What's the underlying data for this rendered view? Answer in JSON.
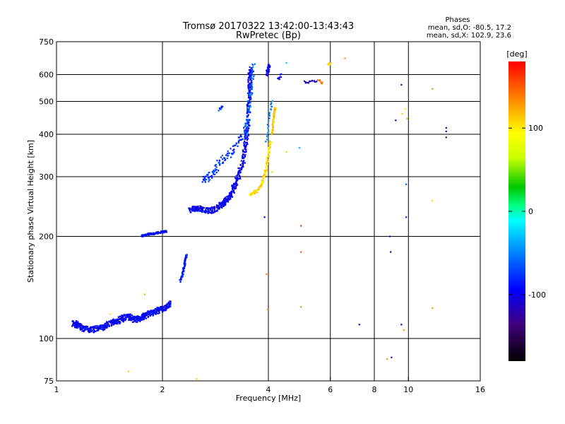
{
  "chart_data": {
    "type": "scatter",
    "title": "Tromsø 20170322 13:42:00-13:43:43",
    "subtitle": "RwPretec (Bp)",
    "xlabel": "Frequency [MHz]",
    "ylabel": "Stationary phase Virtual Height [km]",
    "x_scale": "log",
    "y_scale": "log",
    "xlim": [
      1,
      16
    ],
    "ylim": [
      75,
      750
    ],
    "x_ticks": [
      1,
      2,
      4,
      6,
      8,
      10,
      16
    ],
    "x_tick_labels": [
      "1",
      "2",
      "4",
      "6",
      "8",
      "10",
      "16"
    ],
    "y_ticks": [
      75,
      100,
      200,
      300,
      400,
      500,
      600,
      750
    ],
    "y_tick_labels": [
      "75",
      "100",
      "200",
      "300",
      "400",
      "500",
      "600",
      "750"
    ],
    "grid": true,
    "stats": {
      "heading": "Phases",
      "line_o": "mean, sd,O: -80.5, 17.2",
      "line_x": "mean, sd,X: 102.9, 23.6"
    },
    "colorbar": {
      "label": "[deg]",
      "range": [
        -180,
        180
      ],
      "ticks": [
        -100,
        0,
        100
      ],
      "tick_labels": [
        "-100",
        "0",
        "100"
      ]
    },
    "traces": [
      {
        "points": [
          [
            1.12,
            111
          ],
          [
            1.14,
            110
          ],
          [
            1.16,
            109
          ],
          [
            1.2,
            107
          ],
          [
            1.25,
            106
          ],
          [
            1.3,
            107
          ],
          [
            1.35,
            108
          ],
          [
            1.4,
            110
          ],
          [
            1.45,
            112
          ],
          [
            1.5,
            113
          ],
          [
            1.55,
            115
          ],
          [
            1.6,
            116
          ],
          [
            1.65,
            114
          ],
          [
            1.7,
            114
          ],
          [
            1.75,
            116
          ],
          [
            1.8,
            117
          ],
          [
            1.85,
            119
          ],
          [
            1.9,
            120
          ],
          [
            1.95,
            121
          ],
          [
            2.0,
            122
          ],
          [
            2.05,
            124
          ],
          [
            2.1,
            127
          ]
        ],
        "phase": -95,
        "spread": 4,
        "jitter": 0.025
      },
      {
        "points": [
          [
            1.75,
            201
          ],
          [
            1.82,
            203
          ],
          [
            1.9,
            204
          ],
          [
            1.98,
            206
          ],
          [
            2.05,
            207
          ]
        ],
        "phase": -90,
        "spread": 3,
        "jitter": 0.008
      },
      {
        "points": [
          [
            2.25,
            148
          ],
          [
            2.28,
            155
          ],
          [
            2.3,
            162
          ],
          [
            2.32,
            170
          ],
          [
            2.34,
            176
          ]
        ],
        "phase": -85,
        "spread": 2,
        "jitter": 0.01
      },
      {
        "points": [
          [
            2.4,
            240
          ],
          [
            2.5,
            242
          ],
          [
            2.6,
            240
          ],
          [
            2.75,
            238
          ],
          [
            2.9,
            245
          ],
          [
            3.0,
            252
          ],
          [
            3.1,
            262
          ],
          [
            3.2,
            280
          ],
          [
            3.3,
            305
          ],
          [
            3.4,
            340
          ],
          [
            3.45,
            380
          ],
          [
            3.5,
            430
          ],
          [
            3.52,
            500
          ],
          [
            3.54,
            560
          ],
          [
            3.55,
            620
          ]
        ],
        "phase": -98,
        "spread": 5,
        "jitter": 0.025
      },
      {
        "points": [
          [
            2.6,
            290
          ],
          [
            2.7,
            300
          ],
          [
            2.8,
            310
          ],
          [
            2.9,
            330
          ],
          [
            3.05,
            345
          ],
          [
            3.2,
            365
          ],
          [
            3.35,
            390
          ],
          [
            3.5,
            420
          ]
        ],
        "phase": -75,
        "spread": 2,
        "jitter": 0.03
      },
      {
        "points": [
          [
            2.9,
            470
          ],
          [
            2.95,
            485
          ]
        ],
        "phase": -70,
        "spread": 1,
        "jitter": 0.01
      },
      {
        "points": [
          [
            3.45,
            400
          ],
          [
            3.5,
            450
          ],
          [
            3.55,
            520
          ],
          [
            3.6,
            580
          ],
          [
            3.62,
            640
          ]
        ],
        "phase": -60,
        "spread": 2,
        "jitter": 0.025
      },
      {
        "points": [
          [
            3.55,
            265
          ],
          [
            3.7,
            272
          ],
          [
            3.85,
            290
          ],
          [
            3.95,
            320
          ],
          [
            4.0,
            350
          ],
          [
            4.05,
            380
          ]
        ],
        "phase": 105,
        "spread": 3,
        "jitter": 0.012
      },
      {
        "points": [
          [
            4.1,
            405
          ],
          [
            4.12,
            430
          ],
          [
            4.15,
            460
          ],
          [
            4.18,
            480
          ]
        ],
        "phase": 115,
        "spread": 2,
        "jitter": 0.01
      },
      {
        "points": [
          [
            3.95,
            380
          ],
          [
            4.0,
            430
          ],
          [
            4.05,
            470
          ],
          [
            4.1,
            500
          ]
        ],
        "phase": -50,
        "spread": 1,
        "jitter": 0.01
      },
      {
        "points": [
          [
            3.95,
            600
          ],
          [
            4.0,
            620
          ],
          [
            4.02,
            640
          ]
        ],
        "phase": -100,
        "spread": 2,
        "jitter": 0.015
      },
      {
        "points": [
          [
            4.25,
            580
          ],
          [
            4.35,
            600
          ]
        ],
        "phase": -95,
        "spread": 1,
        "jitter": 0.01
      },
      {
        "points": [
          [
            5.05,
            570
          ],
          [
            5.25,
            570
          ],
          [
            5.5,
            575
          ]
        ],
        "phase": -110,
        "spread": 1,
        "jitter": 0.01
      },
      {
        "points": [
          [
            5.55,
            575
          ],
          [
            5.7,
            565
          ]
        ],
        "phase": 140,
        "spread": 1,
        "jitter": 0.01
      },
      {
        "points": [
          [
            5.9,
            640
          ],
          [
            6.0,
            650
          ]
        ],
        "phase": 110,
        "spread": 1,
        "jitter": 0.01
      }
    ],
    "scatter_points": [
      {
        "x": 1.6,
        "y": 80,
        "phase": 110
      },
      {
        "x": 1.42,
        "y": 118,
        "phase": 100
      },
      {
        "x": 1.78,
        "y": 135,
        "phase": 120
      },
      {
        "x": 2.5,
        "y": 76,
        "phase": 110
      },
      {
        "x": 3.95,
        "y": 155,
        "phase": 140
      },
      {
        "x": 3.98,
        "y": 122,
        "phase": 130
      },
      {
        "x": 3.9,
        "y": 228,
        "phase": -90
      },
      {
        "x": 4.95,
        "y": 215,
        "phase": 160
      },
      {
        "x": 4.95,
        "y": 180,
        "phase": 150
      },
      {
        "x": 4.95,
        "y": 124,
        "phase": 130
      },
      {
        "x": 4.9,
        "y": 365,
        "phase": -30
      },
      {
        "x": 4.5,
        "y": 355,
        "phase": 110
      },
      {
        "x": 4.1,
        "y": 310,
        "phase": 110
      },
      {
        "x": 4.5,
        "y": 650,
        "phase": -30
      },
      {
        "x": 6.6,
        "y": 670,
        "phase": 130
      },
      {
        "x": 7.25,
        "y": 110,
        "phase": -100
      },
      {
        "x": 8.85,
        "y": 200,
        "phase": -110
      },
      {
        "x": 8.9,
        "y": 180,
        "phase": -100
      },
      {
        "x": 8.95,
        "y": 88,
        "phase": -140
      },
      {
        "x": 8.7,
        "y": 87,
        "phase": 130
      },
      {
        "x": 9.2,
        "y": 440,
        "phase": -100
      },
      {
        "x": 9.6,
        "y": 460,
        "phase": 110
      },
      {
        "x": 9.8,
        "y": 475,
        "phase": 100
      },
      {
        "x": 9.55,
        "y": 110,
        "phase": -100
      },
      {
        "x": 9.7,
        "y": 106,
        "phase": 130
      },
      {
        "x": 9.55,
        "y": 560,
        "phase": -110
      },
      {
        "x": 9.9,
        "y": 445,
        "phase": 120
      },
      {
        "x": 9.85,
        "y": 285,
        "phase": -60
      },
      {
        "x": 9.85,
        "y": 228,
        "phase": -80
      },
      {
        "x": 11.7,
        "y": 545,
        "phase": 130
      },
      {
        "x": 11.7,
        "y": 255,
        "phase": 110
      },
      {
        "x": 11.7,
        "y": 123,
        "phase": 130
      },
      {
        "x": 12.8,
        "y": 408,
        "phase": -130
      },
      {
        "x": 12.8,
        "y": 418,
        "phase": -120
      },
      {
        "x": 12.8,
        "y": 392,
        "phase": -140
      }
    ]
  }
}
